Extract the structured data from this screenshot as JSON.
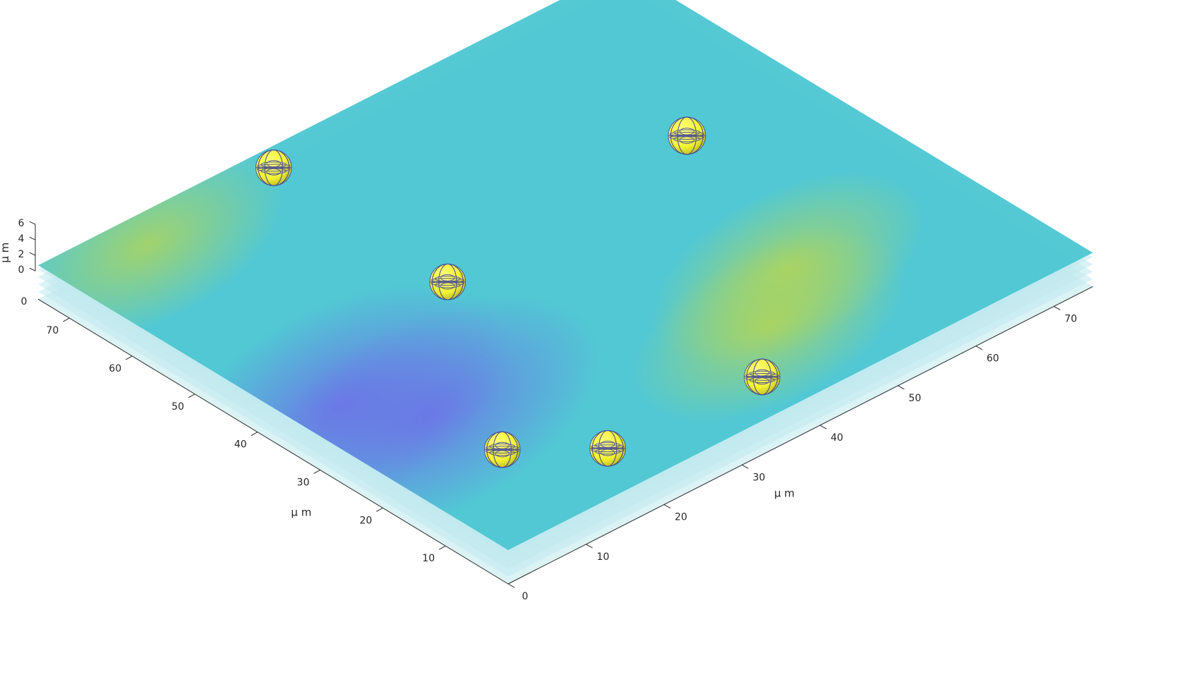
{
  "chart_data": {
    "type": "3d-surface-layers",
    "title": "",
    "x_axis": {
      "label": "μ m",
      "ticks": [
        0,
        10,
        20,
        30,
        40,
        50,
        60,
        70
      ],
      "range": [
        0,
        75
      ]
    },
    "y_axis": {
      "label": "μ m",
      "ticks": [
        10,
        20,
        30,
        40,
        50,
        60,
        70
      ],
      "range": [
        0,
        75
      ]
    },
    "z_axis": {
      "label": "μ m",
      "ticks": [
        0,
        2,
        4,
        6
      ],
      "range": [
        0,
        6
      ]
    },
    "origin_label": "0",
    "layers": {
      "count": 5,
      "z_values": [
        0,
        1,
        2,
        3,
        4
      ],
      "colormap": "parula",
      "color_low": "#6e6ee8",
      "color_mid": "#4cc6d2",
      "color_high": "#bcd64a",
      "edge_color": "#bfe9ee"
    },
    "field_features": [
      {
        "x": 5,
        "y": 33,
        "level": "low"
      },
      {
        "x": 10,
        "y": 25,
        "level": "low"
      },
      {
        "x": 52,
        "y": 20,
        "level": "high"
      },
      {
        "x": 44,
        "y": 13,
        "level": "high"
      },
      {
        "x": 10,
        "y": 70,
        "level": "high"
      }
    ],
    "spheres": [
      {
        "x": 10.5,
        "y": 14,
        "z": 2.5,
        "radius": 2.2
      },
      {
        "x": 18,
        "y": 6.5,
        "z": 2.5,
        "radius": 2.2
      },
      {
        "x": 37,
        "y": 5.5,
        "z": 2.5,
        "radius": 2.2
      },
      {
        "x": 26,
        "y": 42,
        "z": 2.5,
        "radius": 2.2
      },
      {
        "x": 59.5,
        "y": 45.5,
        "z": 2.5,
        "radius": 2.3
      },
      {
        "x": 27,
        "y": 71,
        "z": 2.5,
        "radius": 2.2
      }
    ],
    "sphere_color": "#f2f232",
    "sphere_mesh_color": "#3b3f9e",
    "grid": false,
    "legend": "none"
  }
}
